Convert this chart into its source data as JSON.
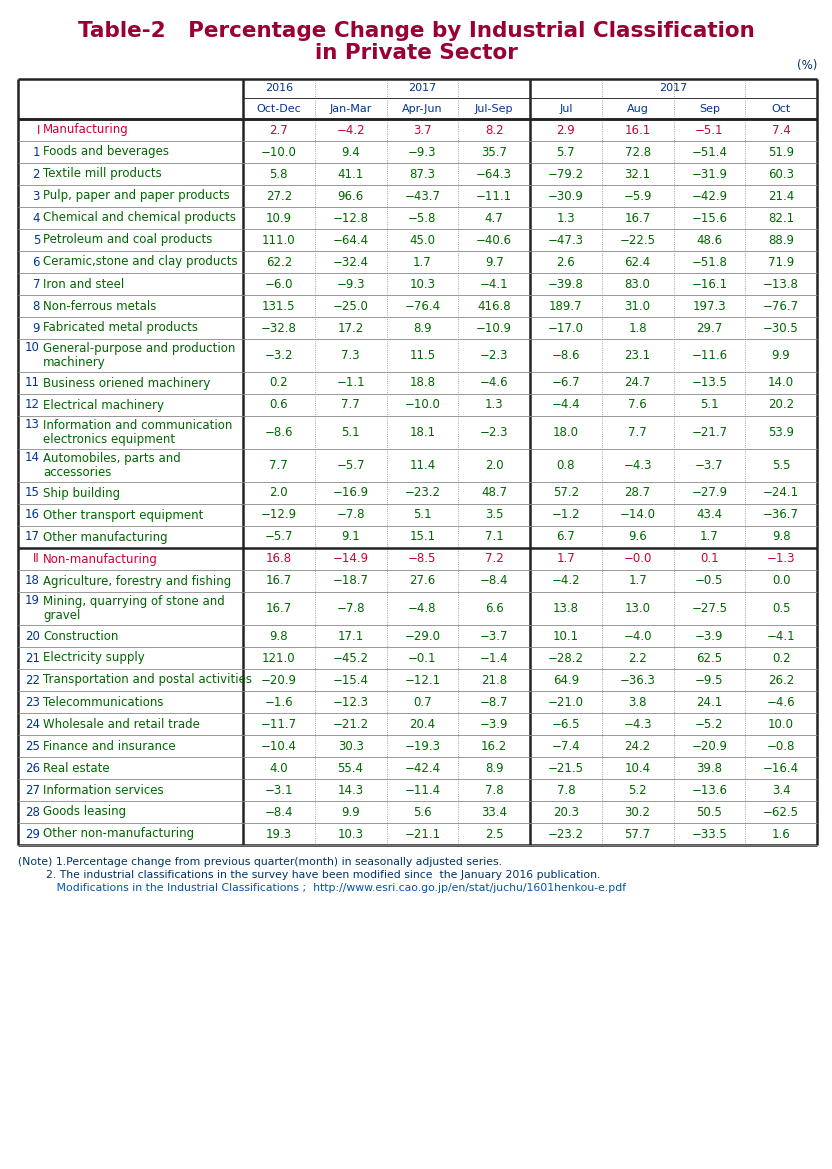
{
  "title_line1": "Table-2   Percentage Change by Industrial Classification",
  "title_line2": "in Private Sector",
  "title_color": "#990033",
  "unit_label": "(%)",
  "rows": [
    {
      "num": "I",
      "label": "Manufacturing",
      "label_color": "#cc0033",
      "num_color": "#cc0033",
      "values": [
        "2.7",
        "−4.2",
        "3.7",
        "8.2",
        "2.9",
        "16.1",
        "−5.1",
        "7.4"
      ],
      "val_color": "#cc0033",
      "multiline": false,
      "section_header": true
    },
    {
      "num": "1",
      "label": "Foods and beverages",
      "label_color": "#006600",
      "num_color": "#003399",
      "values": [
        "−10.0",
        "9.4",
        "−9.3",
        "35.7",
        "5.7",
        "72.8",
        "−51.4",
        "51.9"
      ],
      "val_color": "#006600",
      "multiline": false,
      "section_header": false
    },
    {
      "num": "2",
      "label": "Textile mill products",
      "label_color": "#006600",
      "num_color": "#003399",
      "values": [
        "5.8",
        "41.1",
        "87.3",
        "−64.3",
        "−79.2",
        "32.1",
        "−31.9",
        "60.3"
      ],
      "val_color": "#006600",
      "multiline": false,
      "section_header": false
    },
    {
      "num": "3",
      "label": "Pulp, paper and paper products",
      "label_color": "#006600",
      "num_color": "#003399",
      "values": [
        "27.2",
        "96.6",
        "−43.7",
        "−11.1",
        "−30.9",
        "−5.9",
        "−42.9",
        "21.4"
      ],
      "val_color": "#006600",
      "multiline": false,
      "section_header": false
    },
    {
      "num": "4",
      "label": "Chemical and chemical products",
      "label_color": "#006600",
      "num_color": "#003399",
      "values": [
        "10.9",
        "−12.8",
        "−5.8",
        "4.7",
        "1.3",
        "16.7",
        "−15.6",
        "82.1"
      ],
      "val_color": "#006600",
      "multiline": false,
      "section_header": false
    },
    {
      "num": "5",
      "label": "Petroleum and coal products",
      "label_color": "#006600",
      "num_color": "#003399",
      "values": [
        "111.0",
        "−64.4",
        "45.0",
        "−40.6",
        "−47.3",
        "−22.5",
        "48.6",
        "88.9"
      ],
      "val_color": "#006600",
      "multiline": false,
      "section_header": false
    },
    {
      "num": "6",
      "label": "Ceramic,stone and clay products",
      "label_color": "#006600",
      "num_color": "#003399",
      "values": [
        "62.2",
        "−32.4",
        "1.7",
        "9.7",
        "2.6",
        "62.4",
        "−51.8",
        "71.9"
      ],
      "val_color": "#006600",
      "multiline": false,
      "section_header": false
    },
    {
      "num": "7",
      "label": "Iron and steel",
      "label_color": "#006600",
      "num_color": "#003399",
      "values": [
        "−6.0",
        "−9.3",
        "10.3",
        "−4.1",
        "−39.8",
        "83.0",
        "−16.1",
        "−13.8"
      ],
      "val_color": "#006600",
      "multiline": false,
      "section_header": false
    },
    {
      "num": "8",
      "label": "Non-ferrous metals",
      "label_color": "#006600",
      "num_color": "#003399",
      "values": [
        "131.5",
        "−25.0",
        "−76.4",
        "416.8",
        "189.7",
        "31.0",
        "197.3",
        "−76.7"
      ],
      "val_color": "#006600",
      "multiline": false,
      "section_header": false
    },
    {
      "num": "9",
      "label": "Fabricated metal products",
      "label_color": "#006600",
      "num_color": "#003399",
      "values": [
        "−32.8",
        "17.2",
        "8.9",
        "−10.9",
        "−17.0",
        "1.8",
        "29.7",
        "−30.5"
      ],
      "val_color": "#006600",
      "multiline": false,
      "section_header": false
    },
    {
      "num": "10",
      "label_line1": "General-purpose and production",
      "label_line2": "machinery",
      "label_color": "#006600",
      "num_color": "#003399",
      "values": [
        "−3.2",
        "7.3",
        "11.5",
        "−2.3",
        "−8.6",
        "23.1",
        "−11.6",
        "9.9"
      ],
      "val_color": "#006600",
      "multiline": true,
      "section_header": false
    },
    {
      "num": "11",
      "label": "Business oriened machinery",
      "label_color": "#006600",
      "num_color": "#003399",
      "values": [
        "0.2",
        "−1.1",
        "18.8",
        "−4.6",
        "−6.7",
        "24.7",
        "−13.5",
        "14.0"
      ],
      "val_color": "#006600",
      "multiline": false,
      "section_header": false
    },
    {
      "num": "12",
      "label": "Electrical machinery",
      "label_color": "#006600",
      "num_color": "#003399",
      "values": [
        "0.6",
        "7.7",
        "−10.0",
        "1.3",
        "−4.4",
        "7.6",
        "5.1",
        "20.2"
      ],
      "val_color": "#006600",
      "multiline": false,
      "section_header": false
    },
    {
      "num": "13",
      "label_line1": "Information and communication",
      "label_line2": "electronics equipment",
      "label_color": "#006600",
      "num_color": "#003399",
      "values": [
        "−8.6",
        "5.1",
        "18.1",
        "−2.3",
        "18.0",
        "7.7",
        "−21.7",
        "53.9"
      ],
      "val_color": "#006600",
      "multiline": true,
      "section_header": false
    },
    {
      "num": "14",
      "label_line1": "Automobiles, parts and",
      "label_line2": "accessories",
      "label_color": "#006600",
      "num_color": "#003399",
      "values": [
        "7.7",
        "−5.7",
        "11.4",
        "2.0",
        "0.8",
        "−4.3",
        "−3.7",
        "5.5"
      ],
      "val_color": "#006600",
      "multiline": true,
      "section_header": false
    },
    {
      "num": "15",
      "label": "Ship building",
      "label_color": "#006600",
      "num_color": "#003399",
      "values": [
        "2.0",
        "−16.9",
        "−23.2",
        "48.7",
        "57.2",
        "28.7",
        "−27.9",
        "−24.1"
      ],
      "val_color": "#006600",
      "multiline": false,
      "section_header": false
    },
    {
      "num": "16",
      "label": "Other transport equipment",
      "label_color": "#006600",
      "num_color": "#003399",
      "values": [
        "−12.9",
        "−7.8",
        "5.1",
        "3.5",
        "−1.2",
        "−14.0",
        "43.4",
        "−36.7"
      ],
      "val_color": "#006600",
      "multiline": false,
      "section_header": false
    },
    {
      "num": "17",
      "label": "Other manufacturing",
      "label_color": "#006600",
      "num_color": "#003399",
      "values": [
        "−5.7",
        "9.1",
        "15.1",
        "7.1",
        "6.7",
        "9.6",
        "1.7",
        "9.8"
      ],
      "val_color": "#006600",
      "multiline": false,
      "section_header": false
    },
    {
      "num": "II",
      "label": "Non-manufacturing",
      "label_color": "#cc0033",
      "num_color": "#cc0033",
      "values": [
        "16.8",
        "−14.9",
        "−8.5",
        "7.2",
        "1.7",
        "−0.0",
        "0.1",
        "−1.3"
      ],
      "val_color": "#cc0033",
      "multiline": false,
      "section_header": true
    },
    {
      "num": "18",
      "label": "Agriculture, forestry and fishing",
      "label_color": "#006600",
      "num_color": "#003399",
      "values": [
        "16.7",
        "−18.7",
        "27.6",
        "−8.4",
        "−4.2",
        "1.7",
        "−0.5",
        "0.0"
      ],
      "val_color": "#006600",
      "multiline": false,
      "section_header": false
    },
    {
      "num": "19",
      "label_line1": "Mining, quarrying of stone and",
      "label_line2": "gravel",
      "label_color": "#006600",
      "num_color": "#003399",
      "values": [
        "16.7",
        "−7.8",
        "−4.8",
        "6.6",
        "13.8",
        "13.0",
        "−27.5",
        "0.5"
      ],
      "val_color": "#006600",
      "multiline": true,
      "section_header": false
    },
    {
      "num": "20",
      "label": "Construction",
      "label_color": "#006600",
      "num_color": "#003399",
      "values": [
        "9.8",
        "17.1",
        "−29.0",
        "−3.7",
        "10.1",
        "−4.0",
        "−3.9",
        "−4.1"
      ],
      "val_color": "#006600",
      "multiline": false,
      "section_header": false
    },
    {
      "num": "21",
      "label": "Electricity supply",
      "label_color": "#006600",
      "num_color": "#003399",
      "values": [
        "121.0",
        "−45.2",
        "−0.1",
        "−1.4",
        "−28.2",
        "2.2",
        "62.5",
        "0.2"
      ],
      "val_color": "#006600",
      "multiline": false,
      "section_header": false
    },
    {
      "num": "22",
      "label": "Transportation and postal activities",
      "label_color": "#006600",
      "num_color": "#003399",
      "values": [
        "−20.9",
        "−15.4",
        "−12.1",
        "21.8",
        "64.9",
        "−36.3",
        "−9.5",
        "26.2"
      ],
      "val_color": "#006600",
      "multiline": false,
      "section_header": false
    },
    {
      "num": "23",
      "label": "Telecommunications",
      "label_color": "#006600",
      "num_color": "#003399",
      "values": [
        "−1.6",
        "−12.3",
        "0.7",
        "−8.7",
        "−21.0",
        "3.8",
        "24.1",
        "−4.6"
      ],
      "val_color": "#006600",
      "multiline": false,
      "section_header": false
    },
    {
      "num": "24",
      "label": "Wholesale and retail trade",
      "label_color": "#006600",
      "num_color": "#003399",
      "values": [
        "−11.7",
        "−21.2",
        "20.4",
        "−3.9",
        "−6.5",
        "−4.3",
        "−5.2",
        "10.0"
      ],
      "val_color": "#006600",
      "multiline": false,
      "section_header": false
    },
    {
      "num": "25",
      "label": "Finance and insurance",
      "label_color": "#006600",
      "num_color": "#003399",
      "values": [
        "−10.4",
        "30.3",
        "−19.3",
        "16.2",
        "−7.4",
        "24.2",
        "−20.9",
        "−0.8"
      ],
      "val_color": "#006600",
      "multiline": false,
      "section_header": false
    },
    {
      "num": "26",
      "label": "Real estate",
      "label_color": "#006600",
      "num_color": "#003399",
      "values": [
        "4.0",
        "55.4",
        "−42.4",
        "8.9",
        "−21.5",
        "10.4",
        "39.8",
        "−16.4"
      ],
      "val_color": "#006600",
      "multiline": false,
      "section_header": false
    },
    {
      "num": "27",
      "label": "Information services",
      "label_color": "#006600",
      "num_color": "#003399",
      "values": [
        "−3.1",
        "14.3",
        "−11.4",
        "7.8",
        "7.8",
        "5.2",
        "−13.6",
        "3.4"
      ],
      "val_color": "#006600",
      "multiline": false,
      "section_header": false
    },
    {
      "num": "28",
      "label": "Goods leasing",
      "label_color": "#006600",
      "num_color": "#003399",
      "values": [
        "−8.4",
        "9.9",
        "5.6",
        "33.4",
        "20.3",
        "30.2",
        "50.5",
        "−62.5"
      ],
      "val_color": "#006600",
      "multiline": false,
      "section_header": false
    },
    {
      "num": "29",
      "label": "Other non-manufacturing",
      "label_color": "#006600",
      "num_color": "#003399",
      "values": [
        "19.3",
        "10.3",
        "−21.1",
        "2.5",
        "−23.2",
        "57.7",
        "−33.5",
        "1.6"
      ],
      "val_color": "#006600",
      "multiline": false,
      "section_header": false
    }
  ],
  "notes": [
    "(Note) 1.Percentage change from previous quarter(month) in seasonally adjusted series.",
    "        2. The industrial classifications in the survey have been modified since  the January 2016 publication.",
    "           Modifications in the Industrial Classifications ;  http://www.esri.cao.go.jp/en/stat/juchu/1601henkou-e.pdf"
  ],
  "note_colors": [
    "#003366",
    "#003366",
    "#0055aa"
  ]
}
